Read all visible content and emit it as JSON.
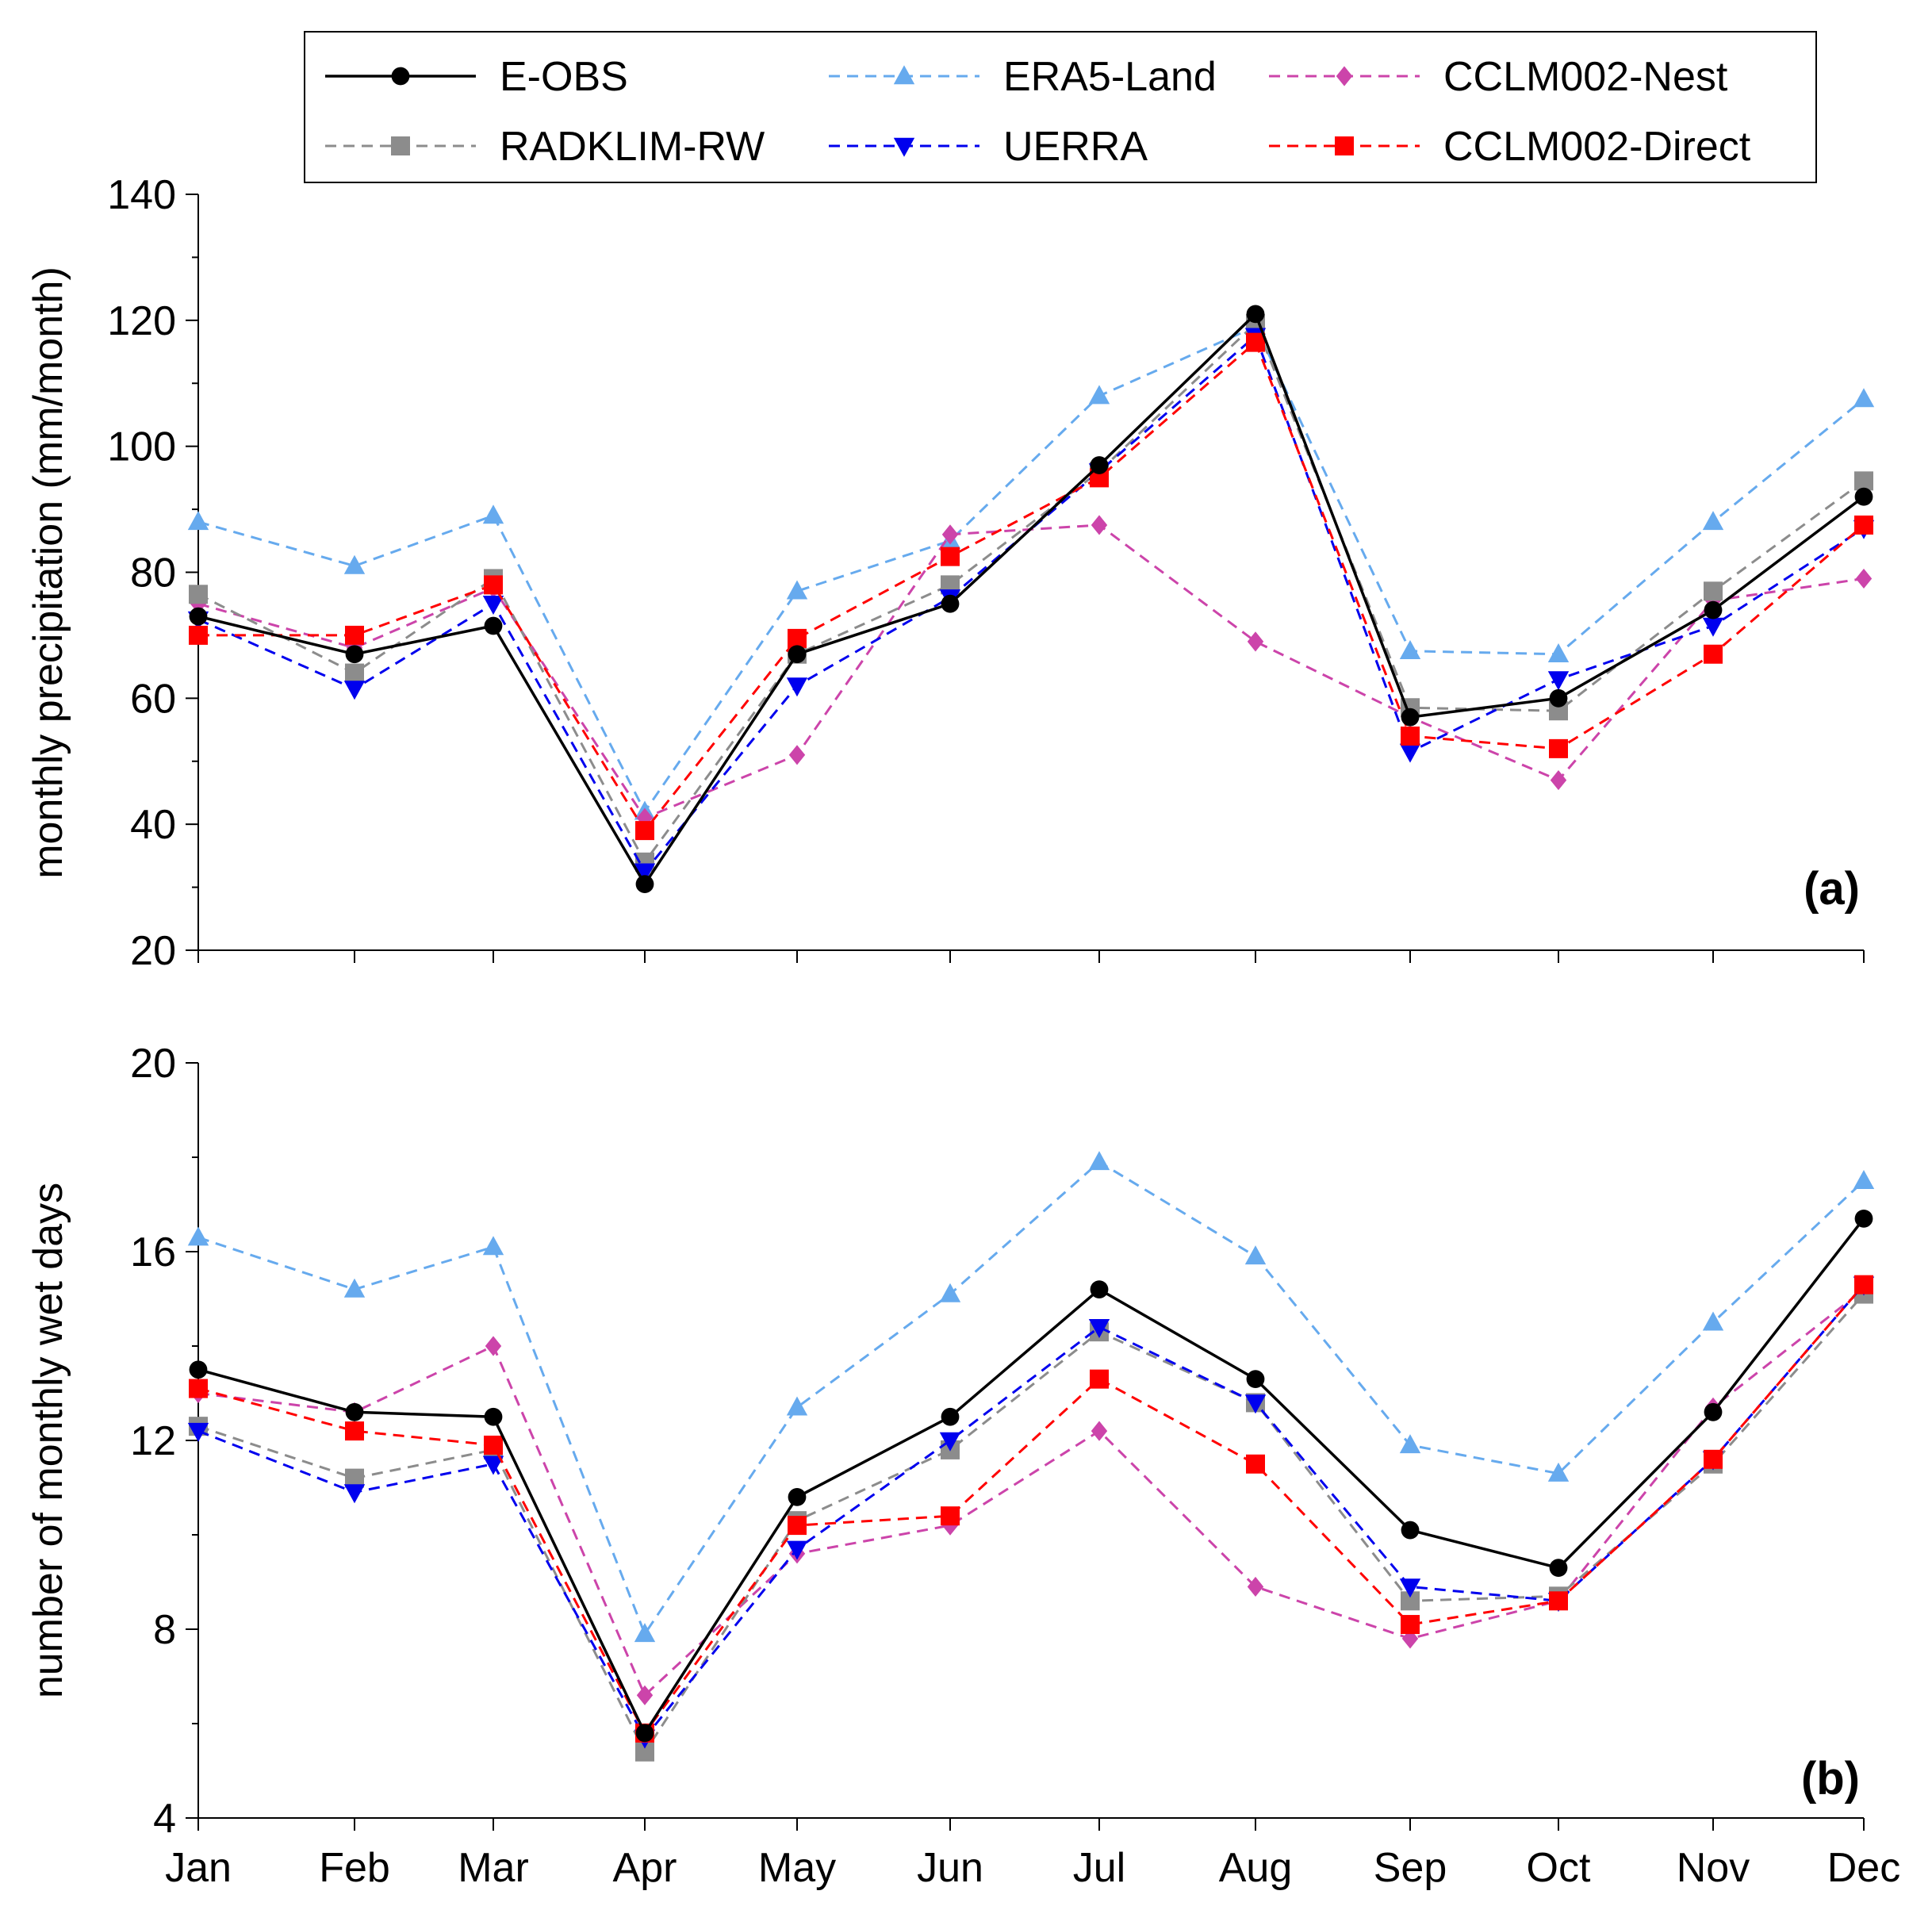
{
  "chart_data": [
    {
      "type": "line",
      "panel": "(a)",
      "ylabel": "monthly precipitation (mm/month)",
      "xlabel": "",
      "categories": [
        "Jan",
        "Feb",
        "Mar",
        "Apr",
        "May",
        "Jun",
        "Jul",
        "Aug",
        "Sep",
        "Oct",
        "Nov",
        "Dec"
      ],
      "ylim": [
        20,
        140
      ],
      "yticks": [
        20,
        40,
        60,
        80,
        100,
        120,
        140
      ],
      "series": [
        {
          "name": "E-OBS",
          "values": [
            73,
            67,
            71.5,
            30.5,
            67,
            75,
            97,
            121,
            57,
            60,
            74,
            92
          ]
        },
        {
          "name": "RADKLIM-RW",
          "values": [
            76.5,
            64,
            79,
            34,
            67,
            78,
            96,
            119.5,
            58.5,
            58,
            77,
            94.5
          ]
        },
        {
          "name": "ERA5-Land",
          "values": [
            88,
            81,
            89,
            42,
            77,
            85,
            108,
            119,
            67.5,
            67,
            88,
            107.5
          ]
        },
        {
          "name": "UERRA",
          "values": [
            72.5,
            61.5,
            75,
            32.5,
            62,
            76,
            96,
            117.5,
            51.5,
            63,
            71.5,
            87
          ]
        },
        {
          "name": "CCLM002-Nest",
          "values": [
            75,
            68,
            77.5,
            41,
            51,
            86,
            87.5,
            69,
            57,
            47,
            75.5,
            79
          ]
        },
        {
          "name": "CCLM002-Direct",
          "values": [
            70,
            70,
            78,
            39,
            69.5,
            82.5,
            95,
            116.5,
            54,
            52,
            67,
            87.5
          ]
        }
      ]
    },
    {
      "type": "line",
      "panel": "(b)",
      "ylabel": "number of monthly wet days",
      "xlabel": "",
      "categories": [
        "Jan",
        "Feb",
        "Mar",
        "Apr",
        "May",
        "Jun",
        "Jul",
        "Aug",
        "Sep",
        "Oct",
        "Nov",
        "Dec"
      ],
      "ylim": [
        4,
        20
      ],
      "yticks": [
        4,
        8,
        12,
        16,
        20
      ],
      "series": [
        {
          "name": "E-OBS",
          "values": [
            13.5,
            12.6,
            12.5,
            5.8,
            10.8,
            12.5,
            15.2,
            13.3,
            10.1,
            9.3,
            12.6,
            16.7
          ]
        },
        {
          "name": "RADKLIM-RW",
          "values": [
            12.3,
            11.2,
            11.8,
            5.4,
            10.3,
            11.8,
            14.3,
            12.8,
            8.6,
            8.7,
            11.5,
            15.1
          ]
        },
        {
          "name": "ERA5-Land",
          "values": [
            16.3,
            15.2,
            16.1,
            7.9,
            12.7,
            15.1,
            17.9,
            15.9,
            11.9,
            11.3,
            14.5,
            17.5
          ]
        },
        {
          "name": "UERRA",
          "values": [
            12.2,
            10.9,
            11.5,
            5.7,
            9.7,
            12.0,
            14.4,
            12.8,
            8.9,
            8.6,
            11.6,
            15.3
          ]
        },
        {
          "name": "CCLM002-Nest",
          "values": [
            13.0,
            12.6,
            14.0,
            6.6,
            9.6,
            10.2,
            12.2,
            8.9,
            7.8,
            8.6,
            12.7,
            15.2
          ]
        },
        {
          "name": "CCLM002-Direct",
          "values": [
            13.1,
            12.2,
            11.9,
            5.8,
            10.2,
            10.4,
            13.3,
            11.5,
            8.1,
            8.6,
            11.6,
            15.3
          ]
        }
      ]
    }
  ],
  "legend": {
    "placement": "top-center",
    "entries": [
      {
        "name": "E-OBS",
        "color": "#000000",
        "dashed": false,
        "marker": "circle"
      },
      {
        "name": "ERA5-Land",
        "color": "#66aaee",
        "dashed": true,
        "marker": "triangle-up"
      },
      {
        "name": "CCLM002-Nest",
        "color": "#cc44aa",
        "dashed": true,
        "marker": "diamond"
      },
      {
        "name": "RADKLIM-RW",
        "color": "#8c8c8c",
        "dashed": true,
        "marker": "square"
      },
      {
        "name": "UERRA",
        "color": "#0000ee",
        "dashed": true,
        "marker": "triangle-down"
      },
      {
        "name": "CCLM002-Direct",
        "color": "#ff0000",
        "dashed": true,
        "marker": "square"
      }
    ]
  },
  "series_order_drawn": [
    "ERA5-Land",
    "CCLM002-Nest",
    "RADKLIM-RW",
    "UERRA",
    "CCLM002-Direct",
    "E-OBS"
  ]
}
